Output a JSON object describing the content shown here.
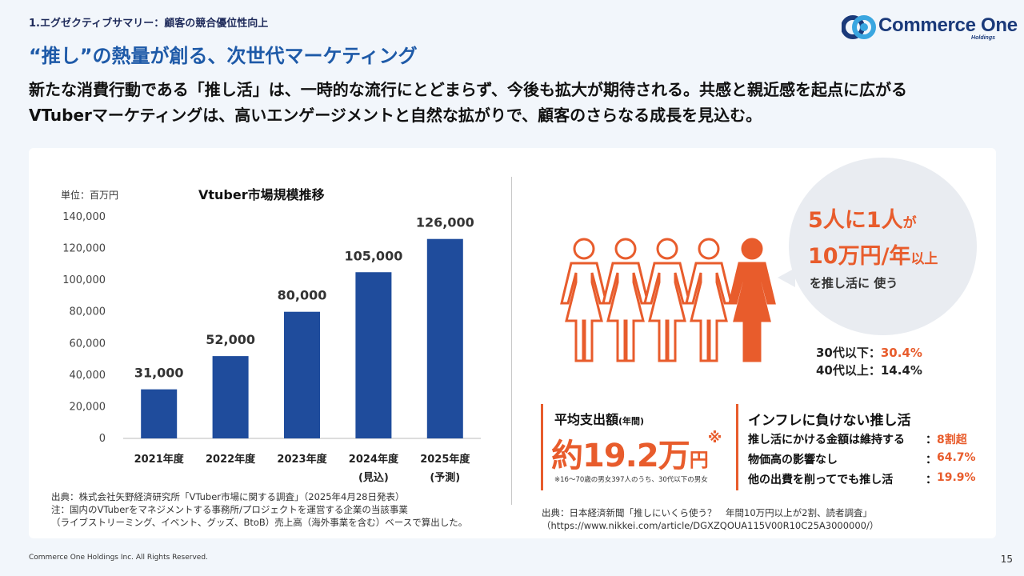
{
  "header": {
    "section": "1.エグゼクティブサマリー：顧客の競合優位性向上",
    "logo_text": "Commerce One",
    "logo_sub": "Holdings",
    "title": "“推し”の熱量が創る、次世代マーケティング",
    "lead_line1": "新たな消費行動である「推し活」は、一時的な流行にとどまらず、今後も拡大が期待される。共感と親近感を起点に広がる",
    "lead_line2": "VTuberマーケティングは、高いエンゲージメントと自然な拡がりで、顧客のさらなる成長を見込む。"
  },
  "chart_data": {
    "type": "bar",
    "title": "Vtuber市場規模推移",
    "unit_label": "単位：百万円",
    "categories": [
      "2021年度",
      "2022年度",
      "2023年度",
      "2024年度",
      "2025年度"
    ],
    "sublabels": [
      "",
      "",
      "",
      "(見込)",
      "(予測)"
    ],
    "values": [
      31000,
      52000,
      80000,
      105000,
      126000
    ],
    "value_labels": [
      "31,000",
      "52,000",
      "80,000",
      "105,000",
      "126,000"
    ],
    "yticks": [
      "0",
      "20,000",
      "40,000",
      "60,000",
      "80,000",
      "100,000",
      "120,000",
      "140,000"
    ],
    "ylim": [
      0,
      140000
    ],
    "bar_color": "#1f4c9c"
  },
  "left_source": {
    "line1": "出典：株式会社矢野経済研究所「VTuber市場に関する調査」（2025年4月28日発表）",
    "line2": "注：国内のVTuberをマネジメントする事務所/プロジェクトを運営する企業の当該事業",
    "line3": "（ライブストリーミング、イベント、グッズ、BtoB）売上高（海外事業を含む）ベースで算出した。"
  },
  "bubble": {
    "line1_main": "5人に1人",
    "line1_small": "が",
    "line2_main": "10万円/年",
    "line2_small": "以上",
    "line3": "を推し活に 使う"
  },
  "age_stats": {
    "row1_label": "30代以下：",
    "row1_value": "30.4%",
    "row2": "40代以上：14.4%"
  },
  "avg_spend": {
    "label": "平均支出額",
    "label_small": "(年間)",
    "value": "約19.2万",
    "unit": "円",
    "mark": "※",
    "note": "※16～70歳の男女397人のうち、30代以下の男女"
  },
  "inflation": {
    "title": "インフレに負けない推し活",
    "rows": [
      {
        "label": "推し活にかける金額は維持する",
        "value": "8割超"
      },
      {
        "label": "物価高の影響なし",
        "value": "64.7%"
      },
      {
        "label": "他の出費を削ってでも推し活",
        "value": "19.9%"
      }
    ]
  },
  "right_source": {
    "line1": "出典：日本経済新聞「推しにいくら使う？　年間10万円以上が2割、読者調査」",
    "line2": "（https://www.nikkei.com/article/DGXZQOUA115V00R10C25A3000000/）"
  },
  "colors": {
    "accent": "#e85c2c",
    "navy": "#1f4c9c",
    "title_blue": "#1e5aa8"
  },
  "footer": {
    "copyright": "Commerce One Holdings Inc. All Rights Reserved.",
    "page": "15"
  }
}
